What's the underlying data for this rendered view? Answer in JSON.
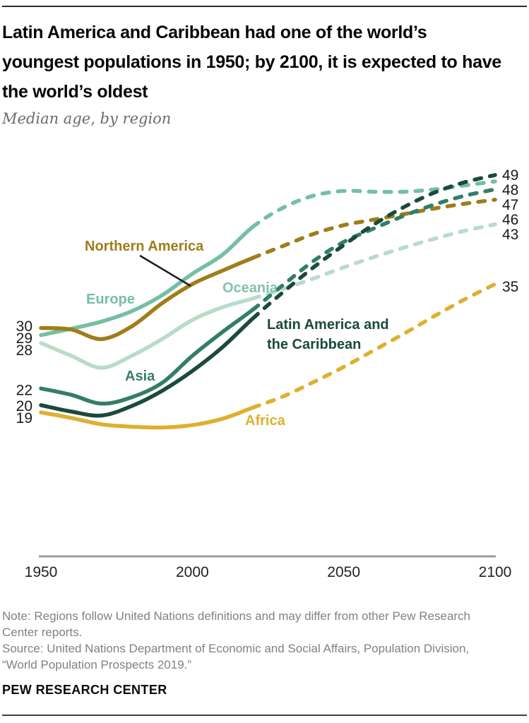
{
  "header": {
    "title": "Latin America and Caribbean had one of the world’s youngest populations in 1950; by 2100, it is expected to have the world’s oldest",
    "subtitle": "Median age, by region"
  },
  "chart_data": {
    "type": "line",
    "title": "Latin America and Caribbean had one of the world’s youngest populations in 1950; by 2100, it is expected to have the world’s oldest",
    "subtitle": "Median age, by region",
    "ylabel": "Median age",
    "x": [
      1950,
      1960,
      1970,
      1980,
      1990,
      2000,
      2010,
      2020,
      2030,
      2040,
      2050,
      2060,
      2070,
      2080,
      2090,
      2100
    ],
    "xlim": [
      1950,
      2100
    ],
    "x_ticks": [
      "1950",
      "2000",
      "2050",
      "2100"
    ],
    "x_tick_years": [
      1950,
      2000,
      2050,
      2100
    ],
    "solid_until_year": 2020,
    "projection_style": "dashed after 2020",
    "grid": false,
    "legend_position": "inline labels on lines",
    "series": [
      {
        "id": "oceania",
        "name": "Oceania",
        "color": "#b8dcc8",
        "label_color": "#82c3a8",
        "start_label": "28",
        "end_label": "43",
        "values": [
          27.9,
          26.3,
          24.8,
          26.3,
          28.4,
          30.8,
          32.4,
          33.5,
          34.7,
          36.0,
          37.4,
          38.7,
          39.9,
          41.0,
          42.0,
          42.8
        ]
      },
      {
        "id": "europe",
        "name": "Europe",
        "color": "#75bfa4",
        "start_label": "29",
        "end_label": "48",
        "values": [
          28.9,
          29.7,
          30.6,
          31.9,
          33.9,
          36.6,
          39.0,
          42.5,
          44.9,
          46.4,
          47.0,
          46.9,
          46.9,
          47.2,
          47.7,
          48.2
        ]
      },
      {
        "id": "northern-america",
        "name": "Northern America",
        "color": "#9f7d19",
        "start_label": "30",
        "end_label": "46",
        "values": [
          29.8,
          29.6,
          28.4,
          30.0,
          32.9,
          35.3,
          37.0,
          38.6,
          40.1,
          41.6,
          42.7,
          43.4,
          44.1,
          44.8,
          45.4,
          45.9
        ]
      },
      {
        "id": "africa",
        "name": "Africa",
        "color": "#ddb02f",
        "start_label": "19",
        "end_label": "35",
        "values": [
          19.2,
          18.5,
          17.7,
          17.4,
          17.3,
          17.6,
          18.4,
          19.8,
          21.2,
          23.0,
          24.9,
          27.0,
          29.1,
          31.3,
          33.4,
          35.3
        ]
      },
      {
        "id": "asia",
        "name": "Asia",
        "color": "#337e66",
        "start_label": "22",
        "end_label": "47",
        "values": [
          22.2,
          21.4,
          20.3,
          21.1,
          22.9,
          26.3,
          29.3,
          32.1,
          35.2,
          38.2,
          40.6,
          42.3,
          43.9,
          45.3,
          46.4,
          47.2
        ]
      },
      {
        "id": "latin-america",
        "name": "Latin America and the Caribbean",
        "label_lines": [
          "Latin America and",
          "the Caribbean"
        ],
        "color": "#1b4a3c",
        "start_label": "20",
        "end_label": "49",
        "values": [
          20.1,
          19.3,
          18.8,
          20.0,
          21.9,
          24.4,
          27.4,
          31.0,
          34.3,
          37.4,
          40.2,
          42.8,
          45.0,
          46.8,
          48.1,
          49.0
        ]
      }
    ]
  },
  "footnotes": {
    "note": "Note: Regions follow United Nations definitions and may differ from other Pew Research Center reports.",
    "source": "Source: United Nations Department of Economic and Social Affairs, Population Division, “World Population Prospects 2019.”"
  },
  "footer": {
    "brand": "PEW RESEARCH CENTER"
  }
}
